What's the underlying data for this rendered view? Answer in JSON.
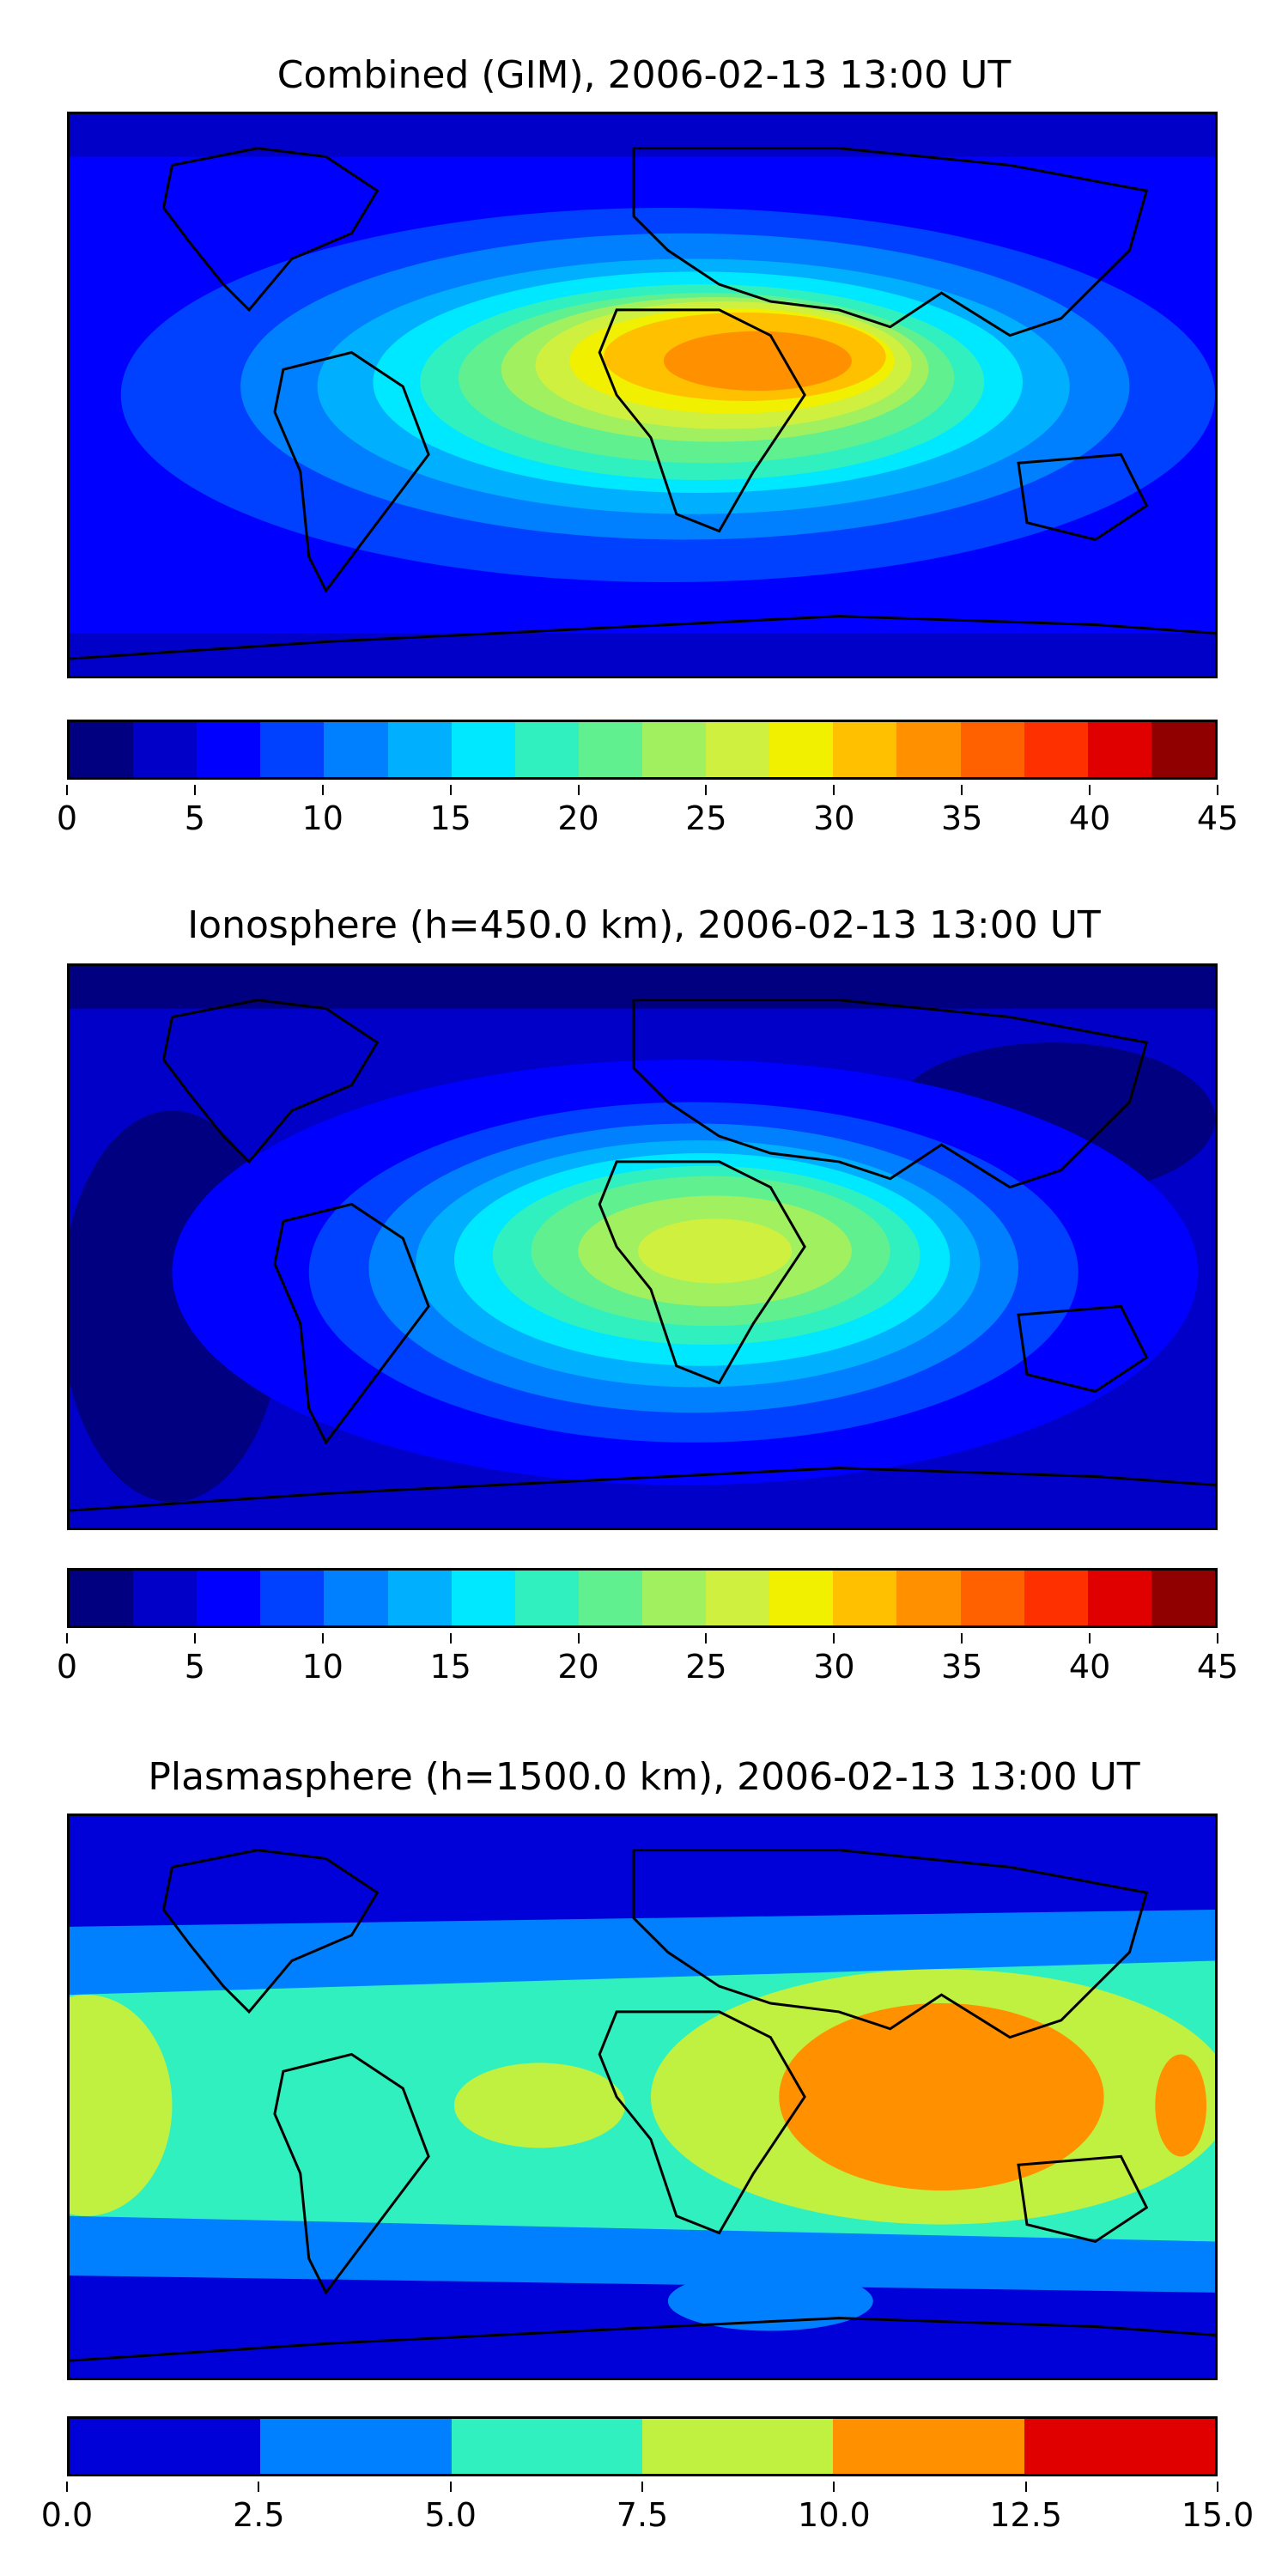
{
  "panels": [
    {
      "title": "Combined (GIM), 2006-02-13 13:00 UT",
      "colorbar": {
        "colors": [
          "#000080",
          "#0000c8",
          "#0000ff",
          "#0040ff",
          "#0080ff",
          "#00b0ff",
          "#00e8ff",
          "#30f0c0",
          "#60f090",
          "#a0f060",
          "#d0f040",
          "#f0f000",
          "#ffc000",
          "#ff9000",
          "#ff6000",
          "#ff3000",
          "#e00000",
          "#900000"
        ],
        "ticks": [
          "0",
          "5",
          "10",
          "15",
          "20",
          "25",
          "30",
          "35",
          "40",
          "45"
        ],
        "min": 0,
        "max": 45
      }
    },
    {
      "title": "Ionosphere  (h=450.0 km), 2006-02-13 13:00 UT",
      "colorbar": {
        "colors": [
          "#000080",
          "#0000c8",
          "#0000ff",
          "#0040ff",
          "#0080ff",
          "#00b0ff",
          "#00e8ff",
          "#30f0c0",
          "#60f090",
          "#a0f060",
          "#d0f040",
          "#f0f000",
          "#ffc000",
          "#ff9000",
          "#ff6000",
          "#ff3000",
          "#e00000",
          "#900000"
        ],
        "ticks": [
          "0",
          "5",
          "10",
          "15",
          "20",
          "25",
          "30",
          "35",
          "40",
          "45"
        ],
        "min": 0,
        "max": 45
      }
    },
    {
      "title": "Plasmasphere (h=1500.0 km), 2006-02-13 13:00 UT",
      "colorbar": {
        "colors": [
          "#0000d8",
          "#0080ff",
          "#30f0c0",
          "#c0f040",
          "#ff9000",
          "#e00000"
        ],
        "ticks": [
          "0.0",
          "2.5",
          "5.0",
          "7.5",
          "10.0",
          "12.5",
          "15.0"
        ],
        "min": 0,
        "max": 15
      }
    }
  ]
}
